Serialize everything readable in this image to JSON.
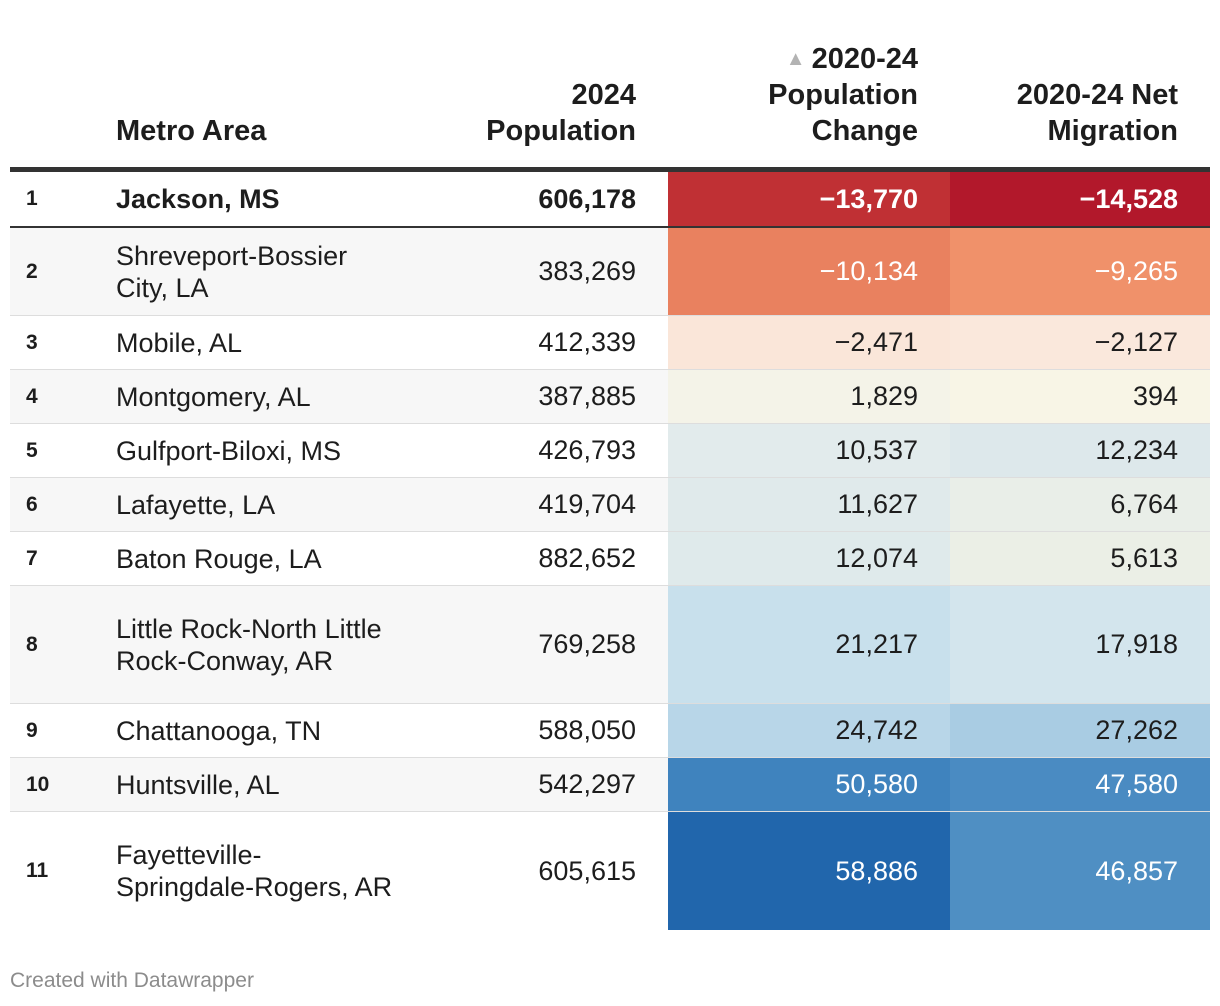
{
  "chart_data": {
    "type": "table",
    "columns": {
      "rank": "",
      "metro": "Metro Area",
      "pop": "2024 Population",
      "change": "2020-24 Population Change",
      "migration": "2020-24 Net Migration"
    },
    "sort_indicator": "▲",
    "rows": [
      {
        "rank": "1",
        "metro": "Jackson, MS",
        "pop": "606,178",
        "change": "−13,770",
        "migration": "−14,528",
        "change_value": -13770,
        "migration_value": -14528,
        "change_color": "#c03034",
        "migration_color": "#b2182b",
        "change_text_color": "#ffffff",
        "migration_text_color": "#ffffff"
      },
      {
        "rank": "2",
        "metro": "Shreveport-Bossier City, LA",
        "pop": "383,269",
        "change": "−10,134",
        "migration": "−9,265",
        "change_value": -10134,
        "migration_value": -9265,
        "change_color": "#e9815f",
        "migration_color": "#f0916a",
        "change_text_color": "#ffffff",
        "migration_text_color": "#ffffff"
      },
      {
        "rank": "3",
        "metro": "Mobile, AL",
        "pop": "412,339",
        "change": "−2,471",
        "migration": "−2,127",
        "change_value": -2471,
        "migration_value": -2127,
        "change_color": "#fae6d9",
        "migration_color": "#fae8dc",
        "change_text_color": "#1d1d1d",
        "migration_text_color": "#1d1d1d"
      },
      {
        "rank": "4",
        "metro": "Montgomery, AL",
        "pop": "387,885",
        "change": "1,829",
        "migration": "394",
        "change_value": 1829,
        "migration_value": 394,
        "change_color": "#f4f3e8",
        "migration_color": "#f8f5e6",
        "change_text_color": "#1d1d1d",
        "migration_text_color": "#1d1d1d"
      },
      {
        "rank": "5",
        "metro": "Gulfport-Biloxi, MS",
        "pop": "426,793",
        "change": "10,537",
        "migration": "12,234",
        "change_value": 10537,
        "migration_value": 12234,
        "change_color": "#e2ebec",
        "migration_color": "#dde8eb",
        "change_text_color": "#1d1d1d",
        "migration_text_color": "#1d1d1d"
      },
      {
        "rank": "6",
        "metro": "Lafayette, LA",
        "pop": "419,704",
        "change": "11,627",
        "migration": "6,764",
        "change_value": 11627,
        "migration_value": 6764,
        "change_color": "#e0eaeb",
        "migration_color": "#e9eee8",
        "change_text_color": "#1d1d1d",
        "migration_text_color": "#1d1d1d"
      },
      {
        "rank": "7",
        "metro": "Baton Rouge, LA",
        "pop": "882,652",
        "change": "12,074",
        "migration": "5,613",
        "change_value": 12074,
        "migration_value": 5613,
        "change_color": "#dfeaeb",
        "migration_color": "#ebefe6",
        "change_text_color": "#1d1d1d",
        "migration_text_color": "#1d1d1d"
      },
      {
        "rank": "8",
        "metro": "Little Rock-North Little Rock-Conway, AR",
        "pop": "769,258",
        "change": "21,217",
        "migration": "17,918",
        "change_value": 21217,
        "migration_value": 17918,
        "change_color": "#c8e0ec",
        "migration_color": "#d3e5ed",
        "change_text_color": "#1d1d1d",
        "migration_text_color": "#1d1d1d"
      },
      {
        "rank": "9",
        "metro": "Chattanooga, TN",
        "pop": "588,050",
        "change": "24,742",
        "migration": "27,262",
        "change_value": 24742,
        "migration_value": 27262,
        "change_color": "#b8d6e8",
        "migration_color": "#a9cce3",
        "change_text_color": "#1d1d1d",
        "migration_text_color": "#1d1d1d"
      },
      {
        "rank": "10",
        "metro": "Huntsville, AL",
        "pop": "542,297",
        "change": "50,580",
        "migration": "47,580",
        "change_value": 50580,
        "migration_value": 47580,
        "change_color": "#3f83be",
        "migration_color": "#4a8bc2",
        "change_text_color": "#ffffff",
        "migration_text_color": "#ffffff"
      },
      {
        "rank": "11",
        "metro": "Fayetteville-Springdale-Rogers, AR",
        "pop": "605,615",
        "change": "58,886",
        "migration": "46,857",
        "change_value": 58886,
        "migration_value": 46857,
        "change_color": "#2166ac",
        "migration_color": "#4f8fc3",
        "change_text_color": "#ffffff",
        "migration_text_color": "#ffffff"
      }
    ]
  },
  "footer": {
    "credit": "Created with Datawrapper"
  }
}
